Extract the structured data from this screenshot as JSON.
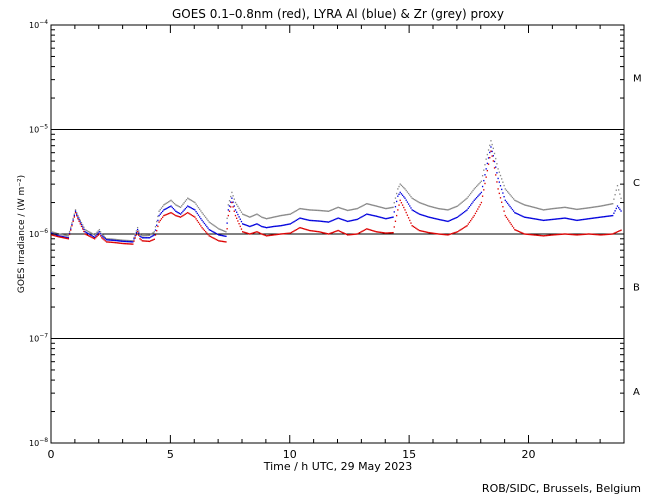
{
  "chart_data": {
    "type": "line",
    "title": "GOES 0.1–0.8nm (red), LYRA Al (blue) & Zr (grey) proxy",
    "xlabel": "Time / h UTC, 29 May 2023",
    "ylabel": "GOES Irradiance / (W m⁻²)",
    "xlim": [
      0,
      24
    ],
    "ylim": [
      1e-08,
      0.0001
    ],
    "yscale": "log",
    "grid": false,
    "x_ticks": [
      0,
      5,
      10,
      15,
      20
    ],
    "x_tick_labels": [
      "0",
      "5",
      "10",
      "15",
      "20"
    ],
    "y_ticks": [
      {
        "value": 1e-08,
        "label": "10",
        "exp": "−8"
      },
      {
        "value": 1e-07,
        "label": "10",
        "exp": "−7"
      },
      {
        "value": 1e-06,
        "label": "10",
        "exp": "−6"
      },
      {
        "value": 1e-05,
        "label": "10",
        "exp": "−5"
      },
      {
        "value": 0.0001,
        "label": "10",
        "exp": "−4"
      }
    ],
    "reference_lines": [
      1e-07,
      1e-06,
      1e-05
    ],
    "flare_classes": [
      {
        "label": "A",
        "y": 3.16e-08
      },
      {
        "label": "B",
        "y": 3.16e-07
      },
      {
        "label": "C",
        "y": 3.16e-06
      },
      {
        "label": "M",
        "y": 3.16e-05
      }
    ],
    "x": [
      0,
      0.3,
      0.7,
      1.0,
      1.1,
      1.4,
      1.8,
      2.0,
      2.1,
      2.3,
      2.6,
      3.0,
      3.4,
      3.6,
      3.7,
      3.8,
      4.1,
      4.3,
      4.5,
      4.7,
      5.0,
      5.2,
      5.4,
      5.7,
      6.0,
      6.3,
      6.6,
      7.0,
      7.3,
      7.4,
      7.55,
      7.7,
      8.0,
      8.3,
      8.6,
      8.8,
      9.0,
      9.3,
      9.6,
      10.0,
      10.4,
      10.8,
      11.2,
      11.6,
      12.0,
      12.4,
      12.8,
      13.2,
      13.6,
      14.0,
      14.3,
      14.5,
      14.6,
      14.8,
      15.1,
      15.4,
      15.8,
      16.2,
      16.6,
      17.0,
      17.4,
      17.7,
      18.0,
      18.2,
      18.4,
      18.5,
      18.7,
      19.0,
      19.4,
      19.8,
      20.2,
      20.6,
      21.0,
      21.5,
      22.0,
      22.5,
      23.0,
      23.5,
      23.7,
      23.9
    ],
    "series": [
      {
        "name": "GOES 0.1–0.8nm",
        "color": "#dd0000",
        "values": [
          9.8e-07,
          9.4e-07,
          9e-07,
          1.6e-06,
          1.4e-06,
          1e-06,
          9e-07,
          1e-06,
          9.2e-07,
          8.4e-07,
          8.3e-07,
          8.1e-07,
          8e-07,
          1.05e-06,
          9e-07,
          8.6e-07,
          8.5e-07,
          8.9e-07,
          1.3e-06,
          1.5e-06,
          1.6e-06,
          1.5e-06,
          1.45e-06,
          1.6e-06,
          1.45e-06,
          1.15e-06,
          9.6e-07,
          8.6e-07,
          8.4e-07,
          1.5e-06,
          2e-06,
          1.5e-06,
          1.05e-06,
          1e-06,
          1.05e-06,
          1e-06,
          9.6e-07,
          9.8e-07,
          1e-06,
          1.02e-06,
          1.15e-06,
          1.08e-06,
          1.05e-06,
          1e-06,
          1.08e-06,
          9.8e-07,
          1e-06,
          1.12e-06,
          1.05e-06,
          1.02e-06,
          1.03e-06,
          1.7e-06,
          2.1e-06,
          1.7e-06,
          1.2e-06,
          1.08e-06,
          1.03e-06,
          1e-06,
          9.8e-07,
          1.05e-06,
          1.2e-06,
          1.5e-06,
          2e-06,
          3.5e-06,
          6.2e-06,
          5e-06,
          2.7e-06,
          1.5e-06,
          1.1e-06,
          1e-06,
          9.8e-07,
          9.6e-07,
          9.8e-07,
          1e-06,
          9.8e-07,
          1e-06,
          9.8e-07,
          1e-06,
          1.05e-06,
          1.1e-06
        ]
      },
      {
        "name": "LYRA Al",
        "color": "#0000dd",
        "values": [
          1.02e-06,
          9.6e-07,
          9.2e-07,
          1.65e-06,
          1.45e-06,
          1.05e-06,
          9.3e-07,
          1.05e-06,
          9.6e-07,
          8.8e-07,
          8.7e-07,
          8.5e-07,
          8.4e-07,
          1.1e-06,
          9.5e-07,
          9.2e-07,
          9.2e-07,
          9.8e-07,
          1.5e-06,
          1.7e-06,
          1.85e-06,
          1.65e-06,
          1.55e-06,
          1.85e-06,
          1.7e-06,
          1.35e-06,
          1.1e-06,
          9.8e-07,
          9.5e-07,
          1.7e-06,
          2.2e-06,
          1.7e-06,
          1.25e-06,
          1.18e-06,
          1.25e-06,
          1.18e-06,
          1.15e-06,
          1.18e-06,
          1.2e-06,
          1.25e-06,
          1.42e-06,
          1.35e-06,
          1.33e-06,
          1.3e-06,
          1.42e-06,
          1.32e-06,
          1.38e-06,
          1.55e-06,
          1.48e-06,
          1.4e-06,
          1.45e-06,
          2.3e-06,
          2.5e-06,
          2.2e-06,
          1.7e-06,
          1.55e-06,
          1.45e-06,
          1.38e-06,
          1.32e-06,
          1.45e-06,
          1.7e-06,
          2.1e-06,
          2.5e-06,
          4.2e-06,
          6.8e-06,
          5.6e-06,
          3.4e-06,
          2.1e-06,
          1.6e-06,
          1.45e-06,
          1.4e-06,
          1.35e-06,
          1.38e-06,
          1.42e-06,
          1.35e-06,
          1.4e-06,
          1.45e-06,
          1.5e-06,
          1.85e-06,
          1.6e-06
        ]
      },
      {
        "name": "Zr",
        "color": "#888888",
        "values": [
          1.05e-06,
          1e-06,
          9.6e-07,
          1.7e-06,
          1.5e-06,
          1.1e-06,
          9.8e-07,
          1.1e-06,
          1e-06,
          9e-07,
          8.9e-07,
          8.7e-07,
          8.6e-07,
          1.15e-06,
          9.9e-07,
          9.6e-07,
          9.7e-07,
          1.05e-06,
          1.65e-06,
          1.9e-06,
          2.1e-06,
          1.9e-06,
          1.8e-06,
          2.2e-06,
          2e-06,
          1.6e-06,
          1.3e-06,
          1.12e-06,
          1.05e-06,
          1.9e-06,
          2.5e-06,
          2e-06,
          1.55e-06,
          1.45e-06,
          1.55e-06,
          1.45e-06,
          1.4e-06,
          1.45e-06,
          1.5e-06,
          1.55e-06,
          1.75e-06,
          1.7e-06,
          1.68e-06,
          1.65e-06,
          1.8e-06,
          1.68e-06,
          1.75e-06,
          1.95e-06,
          1.85e-06,
          1.75e-06,
          1.8e-06,
          2.7e-06,
          3e-06,
          2.7e-06,
          2.2e-06,
          2e-06,
          1.85e-06,
          1.75e-06,
          1.7e-06,
          1.85e-06,
          2.2e-06,
          2.7e-06,
          3.2e-06,
          5.2e-06,
          7.8e-06,
          6.6e-06,
          4.2e-06,
          2.7e-06,
          2.1e-06,
          1.9e-06,
          1.8e-06,
          1.7e-06,
          1.75e-06,
          1.8e-06,
          1.72e-06,
          1.78e-06,
          1.85e-06,
          1.95e-06,
          2.9e-06,
          2e-06
        ]
      }
    ]
  },
  "footer": {
    "credit": "ROB/SIDC, Brussels, Belgium"
  }
}
